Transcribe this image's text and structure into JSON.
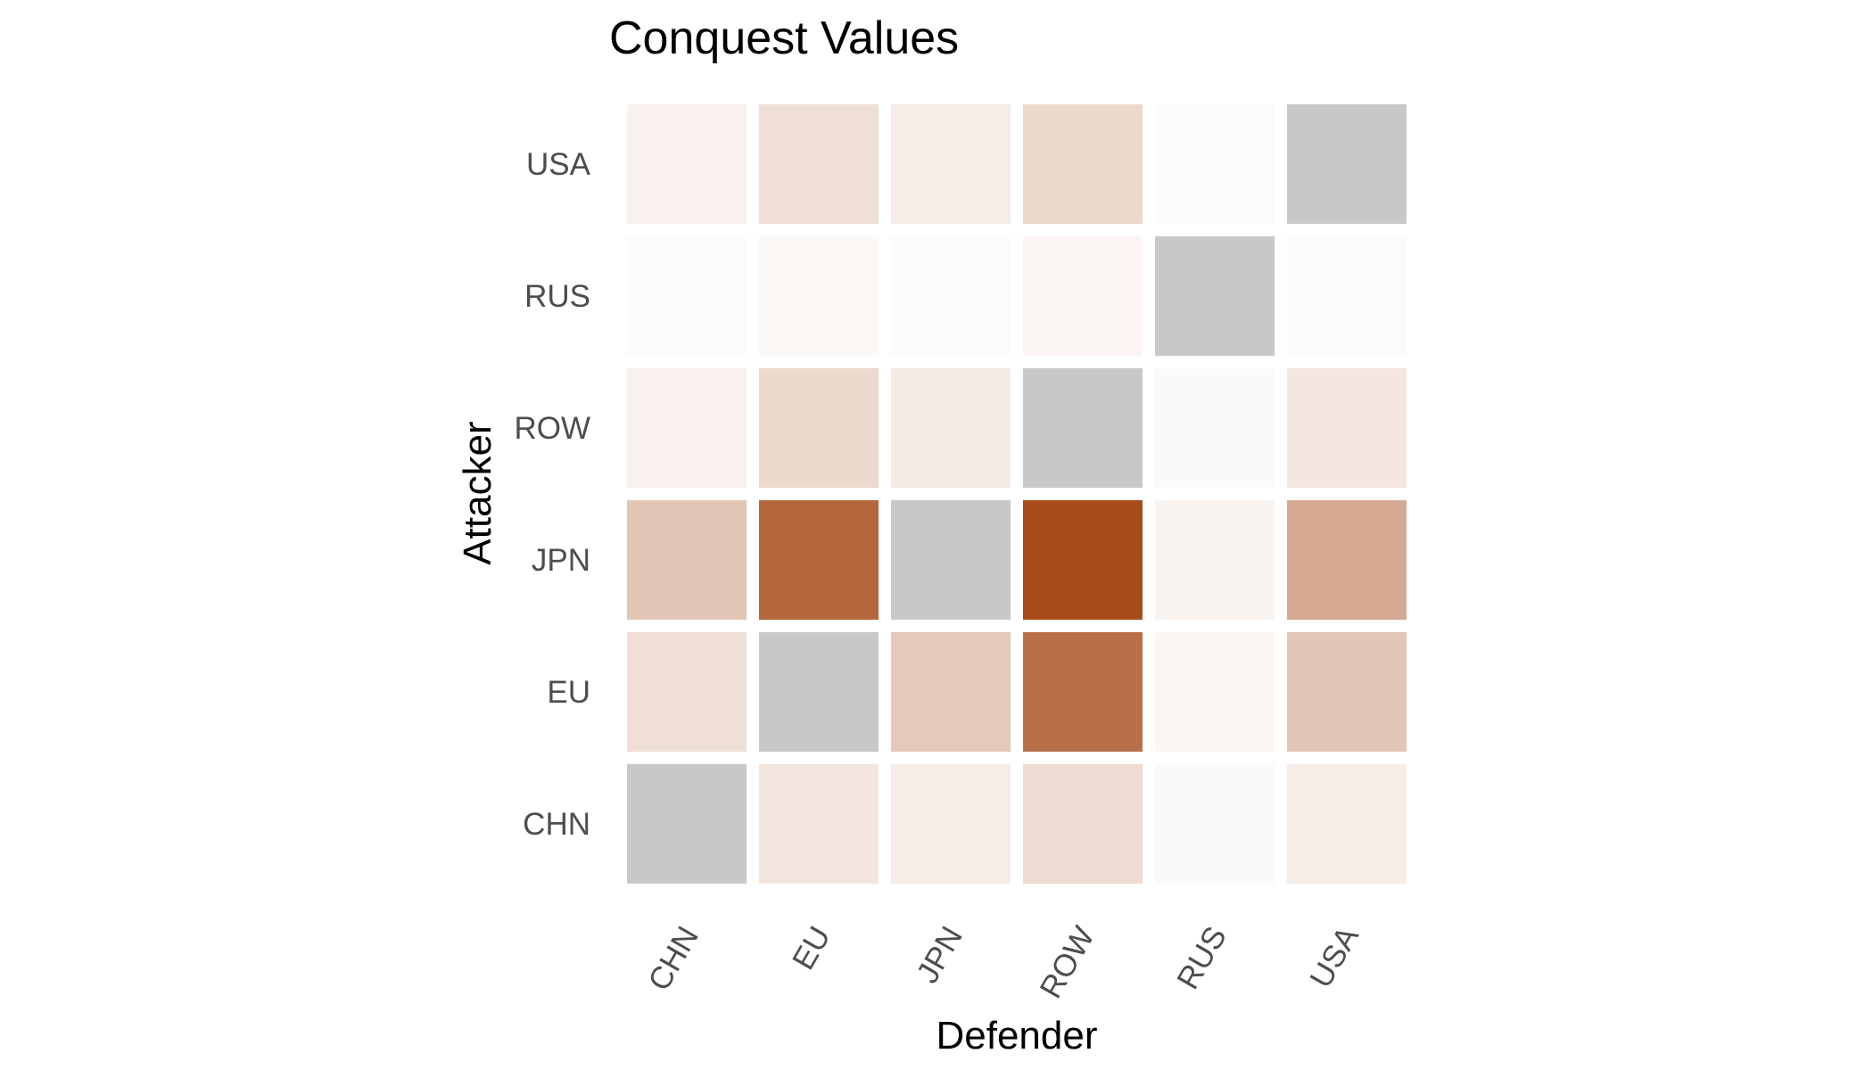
{
  "chart_data": {
    "type": "heatmap",
    "title": "Conquest Values",
    "xlabel": "Defender",
    "ylabel": "Attacker",
    "x_categories": [
      "CHN",
      "EU",
      "JPN",
      "ROW",
      "RUS",
      "USA"
    ],
    "y_categories": [
      "USA",
      "RUS",
      "ROW",
      "JPN",
      "EU",
      "CHN"
    ],
    "values": [
      [
        0.08,
        0.18,
        0.1,
        0.22,
        0.02,
        null
      ],
      [
        0.02,
        0.04,
        0.02,
        0.05,
        null,
        0.02
      ],
      [
        0.08,
        0.22,
        0.12,
        null,
        0.03,
        0.14
      ],
      [
        0.32,
        0.85,
        null,
        1.0,
        0.06,
        0.48
      ],
      [
        0.18,
        null,
        0.3,
        0.8,
        0.05,
        0.32
      ],
      [
        null,
        0.14,
        0.1,
        0.2,
        0.03,
        0.1
      ]
    ],
    "color_scale": {
      "low": "#ffffff",
      "high": "#a84c1a",
      "diagonal_na": "#c8c8c8"
    },
    "grid": false,
    "legend": "none"
  }
}
